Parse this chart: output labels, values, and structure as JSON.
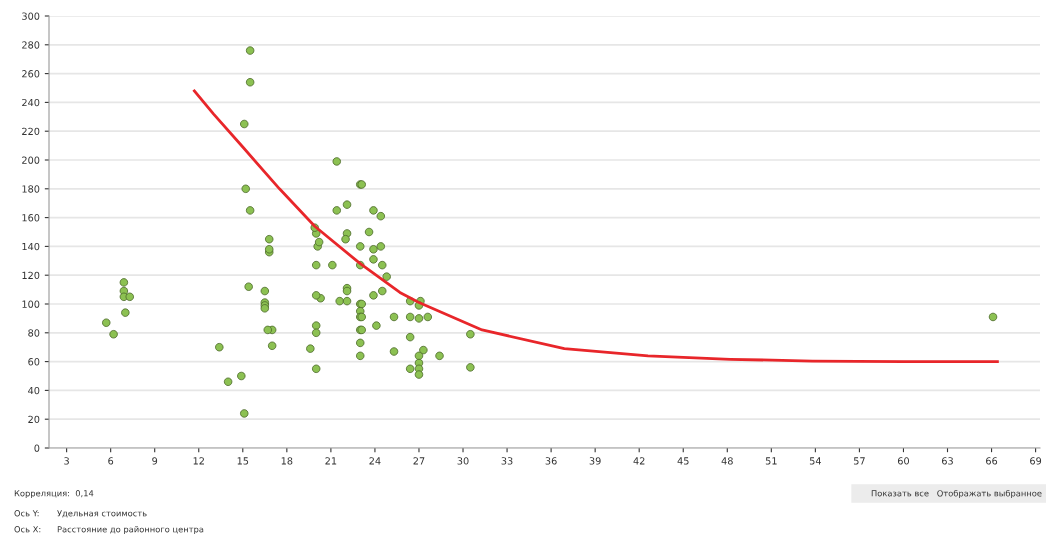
{
  "chart_data": {
    "type": "scatter",
    "xlim": [
      1.8,
      69.3
    ],
    "ylim": [
      0,
      300
    ],
    "xticks": [
      3,
      6,
      9,
      12,
      15,
      18,
      21,
      24,
      27,
      30,
      33,
      36,
      39,
      42,
      45,
      48,
      51,
      54,
      57,
      60,
      63,
      66,
      69
    ],
    "yticks": [
      0,
      20,
      40,
      60,
      80,
      100,
      120,
      140,
      160,
      180,
      200,
      220,
      240,
      260,
      280,
      300
    ],
    "grid": "y",
    "series": [
      {
        "type": "scatter",
        "marker": "circle",
        "color": "#8cc152",
        "x": [
          5.7,
          6.2,
          6.9,
          6.9,
          6.9,
          7.3,
          7.0,
          13.4,
          14.0,
          14.9,
          15.1,
          15.1,
          15.2,
          15.5,
          15.5,
          15.5,
          15.4,
          16.8,
          16.8,
          16.8,
          16.5,
          16.5,
          16.5,
          16.5,
          17.0,
          16.7,
          17.0,
          19.6,
          20.0,
          20.1,
          20.2,
          19.9,
          20.0,
          20.3,
          20.0,
          20.0,
          20.0,
          20.0,
          21.1,
          21.4,
          21.4,
          23.0,
          23.1,
          22.1,
          23.9,
          24.4,
          22.1,
          22.0,
          23.6,
          23.0,
          23.9,
          24.4,
          23.9,
          23.0,
          24.5,
          24.8,
          22.1,
          22.1,
          21.6,
          22.1,
          23.9,
          24.5,
          23.0,
          23.1,
          23.0,
          23.0,
          23.1,
          23.0,
          23.1,
          24.1,
          23.0,
          23.0,
          25.3,
          25.3,
          26.4,
          26.4,
          26.4,
          26.4,
          27.1,
          27.0,
          27.0,
          27.6,
          27.3,
          27.0,
          27.0,
          27.0,
          27.0,
          28.4,
          30.5,
          30.5,
          66.1
        ],
        "values": [
          87,
          79,
          115,
          109,
          105,
          105,
          94,
          70,
          46,
          50,
          24,
          225,
          180,
          276,
          254,
          165,
          112,
          145,
          136,
          138,
          109,
          101,
          99,
          97,
          82,
          82,
          71,
          69,
          149,
          140,
          143,
          153,
          127,
          104,
          106,
          85,
          80,
          55,
          127,
          199,
          165,
          183,
          183,
          169,
          165,
          161,
          149,
          145,
          150,
          140,
          138,
          140,
          131,
          127,
          127,
          119,
          111,
          109,
          102,
          102,
          106,
          109,
          100,
          100,
          95,
          91,
          91,
          82,
          82,
          85,
          73,
          64,
          91,
          67,
          102,
          91,
          77,
          55,
          102,
          99,
          90,
          91,
          68,
          64,
          59,
          55,
          51,
          64,
          79,
          56,
          91
        ]
      },
      {
        "type": "line",
        "color": "#e8262a",
        "line_style": "solid",
        "marker": "none",
        "x": [
          11.7,
          13,
          15,
          17.5,
          19.9,
          23,
          25.7,
          27,
          31.3,
          36.9,
          42.6,
          48.2,
          53.8,
          60,
          66.4
        ],
        "values": [
          248,
          232,
          209,
          180,
          154,
          128,
          108,
          101,
          82,
          69,
          64,
          61.6,
          60.4,
          60,
          60
        ]
      }
    ],
    "annotations": [
      "Корреляция:  0,14",
      "Показать все",
      "Отображать выбранное",
      "Ось Y:",
      "Удельная стоимость",
      "Ось X:",
      "Расстояние до районного центра"
    ]
  }
}
